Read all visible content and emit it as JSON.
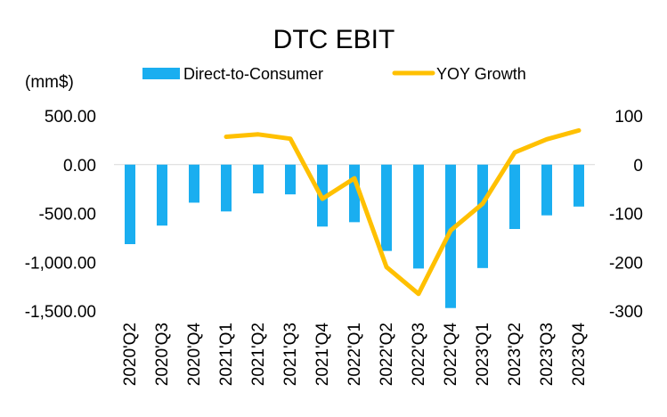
{
  "chart_data": {
    "type": "bar+line",
    "title": "DTC EBIT",
    "unit_label": "(mm$)",
    "categories": [
      "2020'Q2",
      "2020'Q3",
      "2020'Q4",
      "2021'Q1",
      "2021'Q2",
      "2021'Q3",
      "2021'Q4",
      "2022'Q1",
      "2022'Q2",
      "2022'Q3",
      "2022'Q4",
      "2023'Q1",
      "2023'Q2",
      "2023'Q3",
      "2023'Q4"
    ],
    "series": [
      {
        "name": "Direct-to-Consumer",
        "type": "bar",
        "axis": "left",
        "color": "#1aaef0",
        "values": [
          -815,
          -625,
          -390,
          -480,
          -295,
          -305,
          -635,
          -590,
          -885,
          -1065,
          -1470,
          -1060,
          -660,
          -520,
          -430
        ]
      },
      {
        "name": "YOY Growth",
        "type": "line",
        "axis": "right",
        "color": "#ffc000",
        "values": [
          null,
          null,
          null,
          57,
          62,
          53,
          -70,
          -28,
          -210,
          -265,
          -135,
          -80,
          25,
          52,
          70
        ]
      }
    ],
    "left_axis": {
      "min": -1500,
      "max": 500,
      "ticks": [
        500,
        0,
        -500,
        -1000,
        -1500
      ],
      "tick_labels": [
        "500.00",
        "0.00",
        "-500.00",
        "-1,000.00",
        "-1,500.00"
      ]
    },
    "right_axis": {
      "min": -300,
      "max": 100,
      "ticks": [
        100,
        0,
        -100,
        -200,
        -300
      ],
      "tick_labels": [
        "100",
        "0",
        "-100",
        "-200",
        "-300"
      ]
    },
    "legend_position": "top",
    "grid": false
  }
}
